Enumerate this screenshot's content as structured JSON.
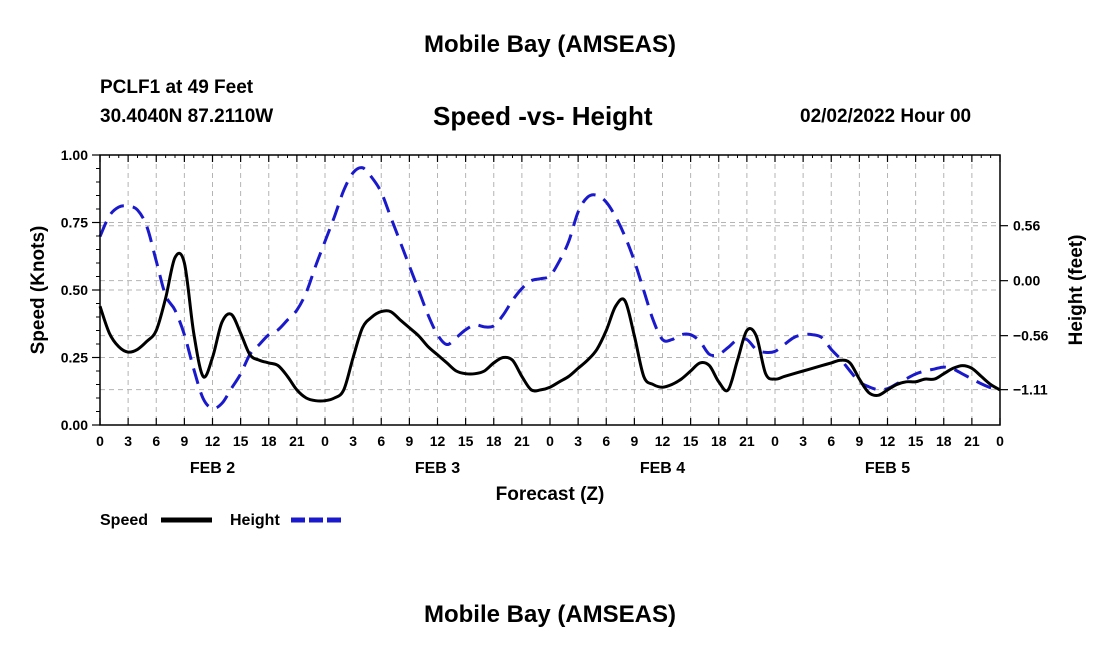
{
  "title": "Mobile Bay (AMSEAS)",
  "station": "PCLF1 at 49 Feet",
  "coordinates": "30.4040N  87.2110W",
  "subtitle": "Speed -vs- Height",
  "datetime": "02/02/2022 Hour 00",
  "bottom_title": "Mobile Bay (AMSEAS)",
  "colors": {
    "speed": "#000000",
    "height": "#1a1acc",
    "grid": "#b4b4b4"
  },
  "chart_data": {
    "type": "line",
    "title": "Speed -vs- Height",
    "xlabel": "Forecast (Z)",
    "ylabel": "Speed (Knots)",
    "y2label": "Height (feet)",
    "xlim": [
      0,
      96
    ],
    "ylim": [
      0,
      1.0
    ],
    "y2lim": [
      -1.47,
      1.28
    ],
    "grid": true,
    "x_tick_labels": [
      "0",
      "3",
      "6",
      "9",
      "12",
      "15",
      "18",
      "21",
      "0",
      "3",
      "6",
      "9",
      "12",
      "15",
      "18",
      "21",
      "0",
      "3",
      "6",
      "9",
      "12",
      "15",
      "18",
      "21",
      "0",
      "3",
      "6",
      "9",
      "12",
      "15",
      "18",
      "21",
      "0"
    ],
    "day_labels": [
      {
        "label": "FEB 2",
        "x": 12
      },
      {
        "label": "FEB 3",
        "x": 36
      },
      {
        "label": "FEB 4",
        "x": 60
      },
      {
        "label": "FEB 5",
        "x": 84
      }
    ],
    "y_ticks": [
      {
        "value": 0.0,
        "label": "0.00"
      },
      {
        "value": 0.25,
        "label": "0.25"
      },
      {
        "value": 0.5,
        "label": "0.50"
      },
      {
        "value": 0.75,
        "label": "0.75"
      },
      {
        "value": 1.0,
        "label": "1.00"
      }
    ],
    "y2_ticks": [
      {
        "value": 0.56,
        "label": "0.56"
      },
      {
        "value": 0.0,
        "label": "0.00"
      },
      {
        "value": -0.56,
        "label": "−0.56"
      },
      {
        "value": -1.11,
        "label": "−1.11"
      }
    ],
    "legend": [
      {
        "name": "Speed",
        "style": "solid"
      },
      {
        "name": "Height",
        "style": "dashed"
      }
    ],
    "series": [
      {
        "name": "Speed",
        "axis": "left",
        "x": [
          0,
          1,
          2,
          3,
          4,
          5,
          6,
          7,
          8,
          9,
          10,
          11,
          12,
          13,
          14,
          15,
          16,
          17,
          18,
          19,
          20,
          21,
          22,
          23,
          24,
          25,
          26,
          27,
          28,
          29,
          30,
          31,
          32,
          33,
          34,
          35,
          36,
          37,
          38,
          39,
          40,
          41,
          42,
          43,
          44,
          45,
          46,
          47,
          48,
          49,
          50,
          51,
          52,
          53,
          54,
          55,
          56,
          57,
          58,
          59,
          60,
          61,
          62,
          63,
          64,
          65,
          66,
          67,
          68,
          69,
          70,
          71,
          72,
          73,
          74,
          75,
          76,
          77,
          78,
          79,
          80,
          81,
          82,
          83,
          84,
          85,
          86,
          87,
          88,
          89,
          90,
          91,
          92,
          93,
          94,
          95,
          96
        ],
        "values": [
          0.44,
          0.34,
          0.29,
          0.27,
          0.28,
          0.31,
          0.35,
          0.47,
          0.62,
          0.6,
          0.34,
          0.18,
          0.25,
          0.38,
          0.41,
          0.34,
          0.26,
          0.24,
          0.23,
          0.22,
          0.18,
          0.13,
          0.1,
          0.09,
          0.09,
          0.1,
          0.13,
          0.25,
          0.36,
          0.4,
          0.42,
          0.42,
          0.39,
          0.36,
          0.33,
          0.29,
          0.26,
          0.23,
          0.2,
          0.19,
          0.19,
          0.2,
          0.23,
          0.25,
          0.24,
          0.18,
          0.13,
          0.13,
          0.14,
          0.16,
          0.18,
          0.21,
          0.24,
          0.28,
          0.35,
          0.44,
          0.46,
          0.33,
          0.18,
          0.15,
          0.14,
          0.15,
          0.17,
          0.2,
          0.23,
          0.22,
          0.16,
          0.13,
          0.24,
          0.35,
          0.33,
          0.19,
          0.17,
          0.18,
          0.19,
          0.2,
          0.21,
          0.22,
          0.23,
          0.24,
          0.23,
          0.17,
          0.12,
          0.11,
          0.13,
          0.15,
          0.16,
          0.16,
          0.17,
          0.17,
          0.19,
          0.21,
          0.22,
          0.21,
          0.18,
          0.15,
          0.13
        ]
      },
      {
        "name": "Height",
        "axis": "right",
        "x": [
          0,
          1,
          2,
          3,
          4,
          5,
          6,
          7,
          8,
          9,
          10,
          11,
          12,
          13,
          14,
          15,
          16,
          17,
          18,
          19,
          20,
          21,
          22,
          23,
          24,
          25,
          26,
          27,
          28,
          29,
          30,
          31,
          32,
          33,
          34,
          35,
          36,
          37,
          38,
          39,
          40,
          41,
          42,
          43,
          44,
          45,
          46,
          47,
          48,
          49,
          50,
          51,
          52,
          53,
          54,
          55,
          56,
          57,
          58,
          59,
          60,
          61,
          62,
          63,
          64,
          65,
          66,
          67,
          68,
          69,
          70,
          71,
          72,
          73,
          74,
          75,
          76,
          77,
          78,
          79,
          80,
          81,
          82,
          83,
          84,
          85,
          86,
          87,
          88,
          89,
          90,
          91,
          92,
          93,
          94,
          95,
          96
        ],
        "values": [
          0.45,
          0.66,
          0.75,
          0.76,
          0.72,
          0.55,
          0.2,
          -0.15,
          -0.3,
          -0.55,
          -0.9,
          -1.2,
          -1.3,
          -1.25,
          -1.1,
          -0.95,
          -0.75,
          -0.65,
          -0.55,
          -0.5,
          -0.4,
          -0.3,
          -0.12,
          0.15,
          0.4,
          0.65,
          0.92,
          1.1,
          1.15,
          1.05,
          0.9,
          0.65,
          0.4,
          0.15,
          -0.1,
          -0.35,
          -0.55,
          -0.65,
          -0.58,
          -0.5,
          -0.45,
          -0.47,
          -0.46,
          -0.35,
          -0.2,
          -0.08,
          0.0,
          0.02,
          0.05,
          0.2,
          0.4,
          0.7,
          0.85,
          0.87,
          0.8,
          0.65,
          0.45,
          0.2,
          -0.1,
          -0.4,
          -0.6,
          -0.6,
          -0.55,
          -0.55,
          -0.62,
          -0.75,
          -0.75,
          -0.68,
          -0.6,
          -0.6,
          -0.7,
          -0.73,
          -0.72,
          -0.65,
          -0.58,
          -0.55,
          -0.55,
          -0.58,
          -0.7,
          -0.8,
          -0.92,
          -1.03,
          -1.08,
          -1.11,
          -1.1,
          -1.05,
          -1.0,
          -0.95,
          -0.92,
          -0.9,
          -0.88,
          -0.9,
          -0.95,
          -1.0,
          -1.05,
          -1.09,
          -1.11
        ]
      }
    ]
  }
}
